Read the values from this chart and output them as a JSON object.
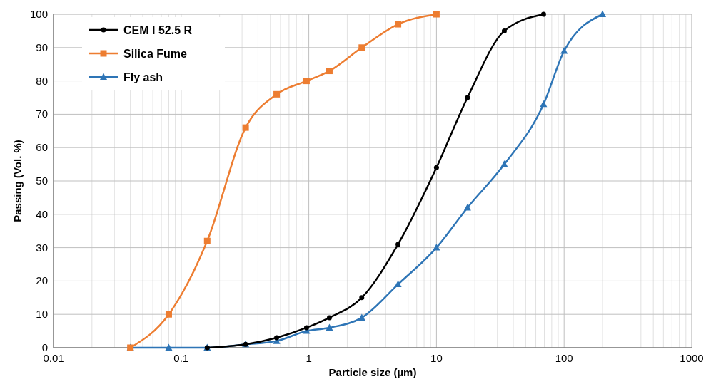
{
  "chart_data": {
    "type": "line",
    "xlabel": "Particle size (µm)",
    "ylabel": "Passing (Vol. %)",
    "log": "x",
    "grid": true,
    "legend": "top left",
    "line_style": "solid",
    "xlim": [
      0.01,
      1000
    ],
    "xticks": [
      0.01,
      0.1,
      1,
      10,
      100,
      1000
    ],
    "ylim": [
      0,
      100
    ],
    "yticks": [
      0,
      10,
      20,
      30,
      40,
      50,
      60,
      70,
      80,
      90,
      100
    ],
    "series": [
      {
        "name": "CEM I 52.5 R",
        "color": "#000000",
        "marker": "circle",
        "x": [
          0.16,
          0.32,
          0.56,
          0.96,
          1.45,
          2.6,
          5,
          10,
          17.5,
          34,
          69
        ],
        "values": [
          0,
          1,
          3,
          6,
          9,
          15,
          31,
          54,
          75,
          95,
          100
        ]
      },
      {
        "name": "Silica Fume",
        "color": "#ed7d31",
        "marker": "square",
        "x": [
          0.04,
          0.08,
          0.16,
          0.32,
          0.56,
          0.96,
          1.45,
          2.6,
          5,
          10
        ],
        "values": [
          0,
          10,
          32,
          66,
          76,
          80,
          83,
          90,
          97,
          100
        ]
      },
      {
        "name": "Fly ash",
        "color": "#2e75b6",
        "marker": "triangle",
        "x": [
          0.04,
          0.08,
          0.16,
          0.32,
          0.56,
          0.96,
          1.45,
          2.6,
          5,
          10,
          17.5,
          34,
          69,
          100,
          200
        ],
        "values": [
          0,
          0,
          0,
          1,
          2,
          5,
          6,
          9,
          19,
          30,
          42,
          55,
          73,
          89,
          100
        ]
      }
    ]
  }
}
